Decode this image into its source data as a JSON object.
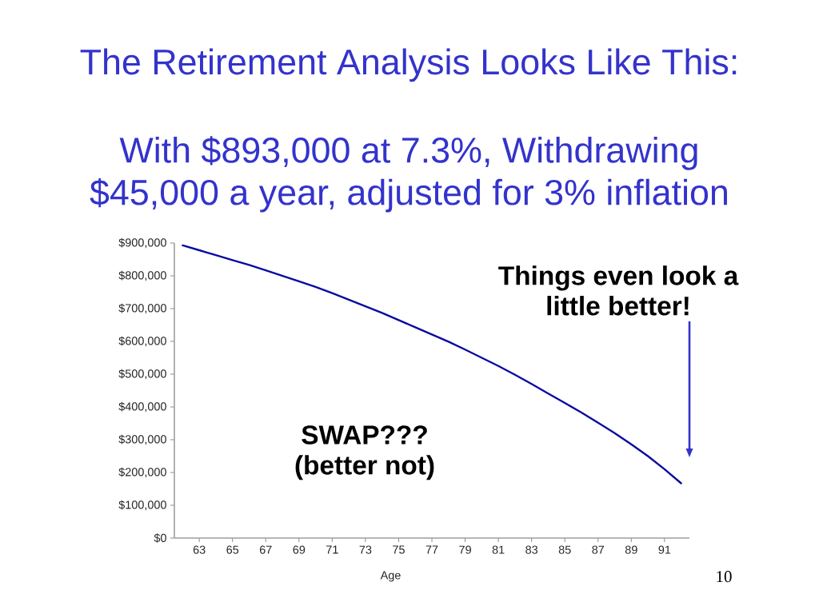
{
  "chart_data": {
    "type": "line",
    "title": "The Retirement Analysis Looks Like This:",
    "subtitle": "With $893,000 at 7.3%, Withdrawing $45,000 a year, adjusted for 3% inflation",
    "xlabel": "Age",
    "x": [
      62,
      63,
      64,
      65,
      66,
      67,
      68,
      69,
      70,
      71,
      72,
      73,
      74,
      75,
      76,
      77,
      78,
      79,
      80,
      81,
      82,
      83,
      84,
      85,
      86,
      87,
      88,
      89,
      90,
      91,
      92
    ],
    "series": [
      {
        "color": "#0a0aa0",
        "values": [
          893000,
          878000,
          863000,
          848000,
          833000,
          817000,
          800000,
          783000,
          766000,
          747000,
          727000,
          707000,
          687000,
          665000,
          643000,
          621000,
          599000,
          575000,
          550000,
          525000,
          498000,
          470000,
          441000,
          412000,
          383000,
          352000,
          320000,
          286000,
          250000,
          210000,
          167000
        ]
      }
    ],
    "xlim": [
      61.5,
      92.5
    ],
    "ylim": [
      0,
      900000
    ],
    "xticks": [
      63,
      65,
      67,
      69,
      71,
      73,
      75,
      77,
      79,
      81,
      83,
      85,
      87,
      89,
      91
    ],
    "yticks": [
      {
        "value": 0,
        "label": "$0"
      },
      {
        "value": 100000,
        "label": "$100,000"
      },
      {
        "value": 200000,
        "label": "$200,000"
      },
      {
        "value": 300000,
        "label": "$300,000"
      },
      {
        "value": 400000,
        "label": "$400,000"
      },
      {
        "value": 500000,
        "label": "$500,000"
      },
      {
        "value": 600000,
        "label": "$600,000"
      },
      {
        "value": 700000,
        "label": "$700,000"
      },
      {
        "value": 800000,
        "label": "$800,000"
      },
      {
        "value": 900000,
        "label": "$900,000"
      }
    ],
    "marker": "none",
    "line_style": "solid",
    "annotations": [
      "Things even look a little better!",
      "SWAP??? (better not)",
      "10"
    ]
  }
}
